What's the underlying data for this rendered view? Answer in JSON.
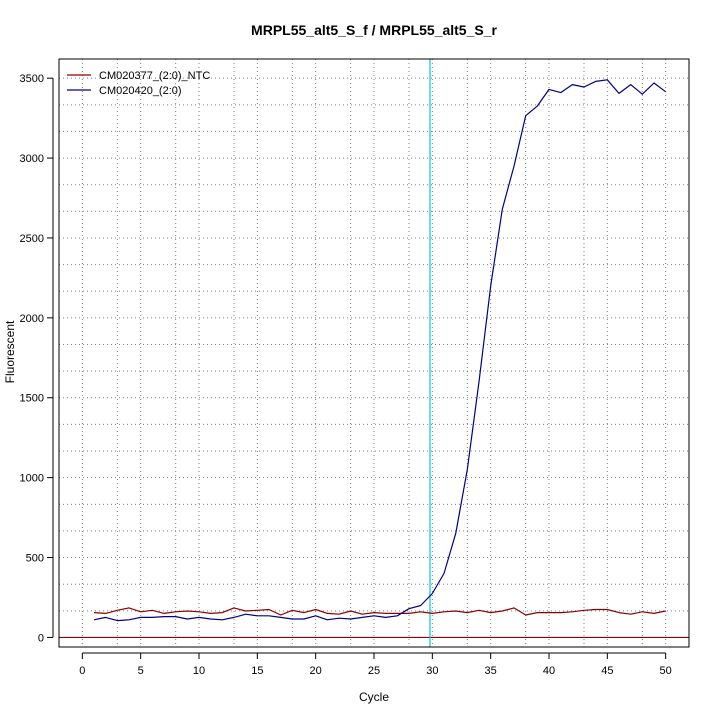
{
  "chart_data": {
    "type": "line",
    "title": "MRPL55_alt5_S_f / MRPL55_alt5_S_r",
    "xlabel": "Cycle",
    "ylabel": "Fluorescent",
    "xlim": [
      -2,
      52
    ],
    "ylim": [
      -60,
      3620
    ],
    "x_ticks": [
      0,
      5,
      10,
      15,
      20,
      25,
      30,
      35,
      40,
      45,
      50
    ],
    "y_ticks": [
      0,
      500,
      1000,
      1500,
      2000,
      2500,
      3000,
      3500
    ],
    "x_grid": [
      3,
      8,
      13,
      18,
      23,
      28,
      33,
      38,
      43,
      48
    ],
    "y_grid": [
      166,
      333,
      500,
      667,
      833,
      1000,
      1167,
      1333,
      1500,
      1667,
      1833,
      2000,
      2167,
      2333,
      2500,
      2667,
      2833,
      3000,
      3167,
      3333,
      3500
    ],
    "grid": true,
    "threshold_x": 29.8,
    "baseline_y": 0,
    "legend_position": "top-left",
    "colors": {
      "threshold": "#00c8e0",
      "baseline": "#8b0000",
      "grid": "#808080",
      "axis": "#000000"
    },
    "series": [
      {
        "name": "CM020377_(2:0)_NTC",
        "color": "#8b0000",
        "x": [
          1,
          2,
          3,
          4,
          5,
          6,
          7,
          8,
          9,
          10,
          11,
          12,
          13,
          14,
          15,
          16,
          17,
          18,
          19,
          20,
          21,
          22,
          23,
          24,
          25,
          26,
          27,
          28,
          29,
          30,
          31,
          32,
          33,
          34,
          35,
          36,
          37,
          38,
          39,
          40,
          41,
          42,
          43,
          44,
          45,
          46,
          47,
          48,
          49,
          50
        ],
        "values": [
          155,
          150,
          170,
          185,
          160,
          170,
          150,
          160,
          165,
          160,
          150,
          155,
          185,
          165,
          170,
          175,
          140,
          170,
          155,
          175,
          150,
          145,
          165,
          145,
          155,
          150,
          150,
          150,
          160,
          150,
          160,
          165,
          155,
          170,
          155,
          165,
          185,
          140,
          155,
          155,
          155,
          160,
          170,
          175,
          175,
          155,
          145,
          160,
          150,
          165
        ]
      },
      {
        "name": "CM020420_(2:0)",
        "color": "#00008b",
        "x": [
          1,
          2,
          3,
          4,
          5,
          6,
          7,
          8,
          9,
          10,
          11,
          12,
          13,
          14,
          15,
          16,
          17,
          18,
          19,
          20,
          21,
          22,
          23,
          24,
          25,
          26,
          27,
          28,
          29,
          30,
          31,
          32,
          33,
          34,
          35,
          36,
          37,
          38,
          39,
          40,
          41,
          42,
          43,
          44,
          45,
          46,
          47,
          48,
          49,
          50
        ],
        "values": [
          110,
          125,
          105,
          110,
          125,
          125,
          130,
          130,
          115,
          125,
          115,
          110,
          125,
          145,
          135,
          135,
          125,
          115,
          115,
          135,
          110,
          120,
          115,
          125,
          135,
          125,
          135,
          180,
          200,
          275,
          400,
          650,
          1050,
          1600,
          2200,
          2680,
          2950,
          3265,
          3325,
          3430,
          3410,
          3460,
          3445,
          3480,
          3490,
          3405,
          3460,
          3400,
          3470,
          3415
        ]
      }
    ]
  }
}
